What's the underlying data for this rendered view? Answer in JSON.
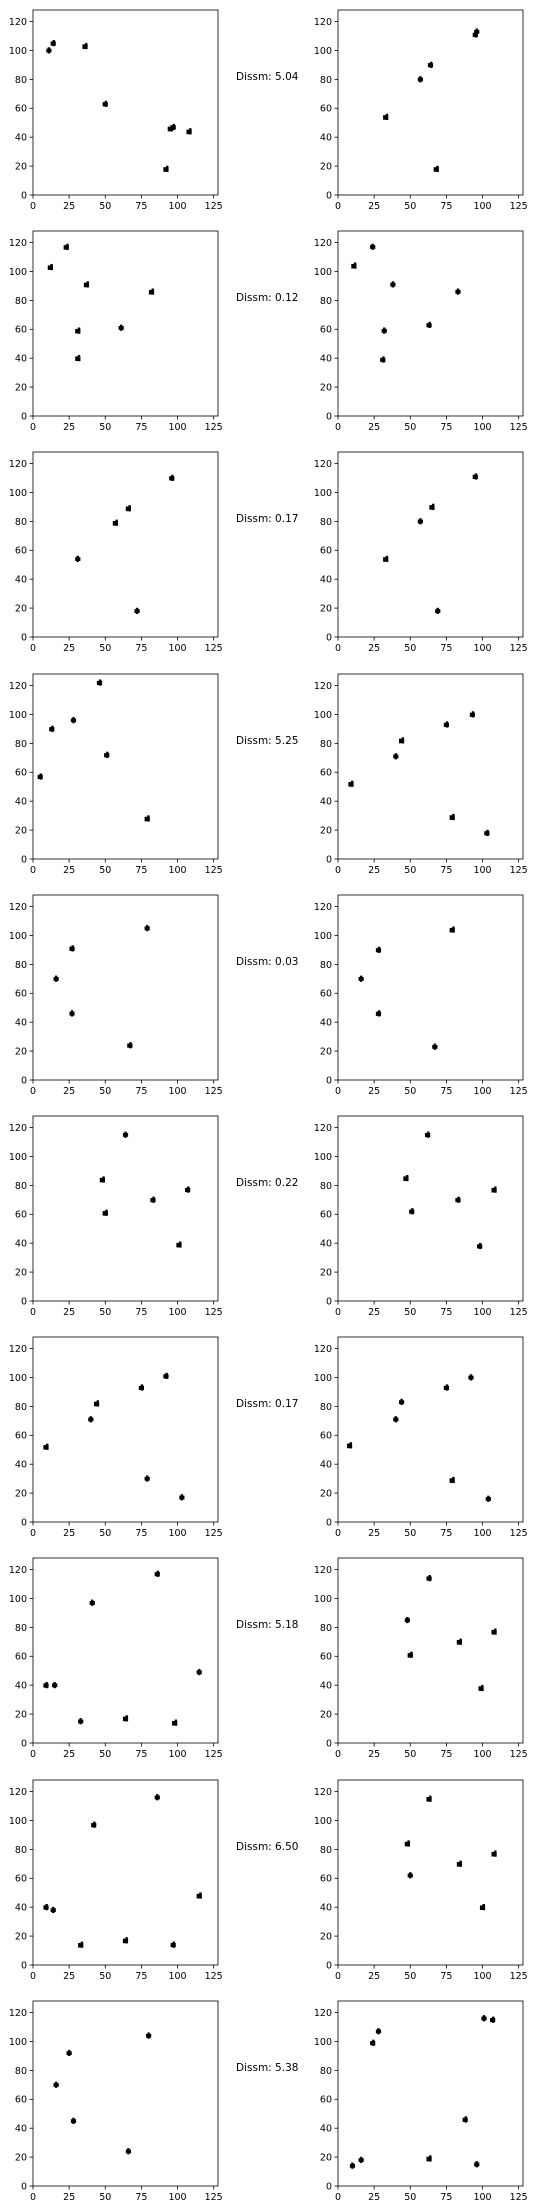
{
  "colors": {
    "points": "#000000",
    "axes": "#000000",
    "background": "#ffffff"
  },
  "chart_data": {
    "type": "scatter",
    "xlim": [
      0,
      128
    ],
    "ylim": [
      128,
      0
    ],
    "x_ticks": [
      "0",
      "25",
      "50",
      "75",
      "100",
      "125"
    ],
    "y_ticks": [
      "0",
      "20",
      "40",
      "60",
      "80",
      "100",
      "120"
    ],
    "x_tick_values": [
      0,
      25,
      50,
      75,
      100,
      125
    ],
    "y_tick_values": [
      0,
      20,
      40,
      60,
      80,
      100,
      120
    ],
    "grid": false,
    "rows": [
      {
        "dissm": "Dissm: 5.04",
        "left": [
          [
            92,
            18
          ],
          [
            95,
            46
          ],
          [
            97,
            47
          ],
          [
            108,
            44
          ],
          [
            50,
            63
          ],
          [
            36,
            103
          ],
          [
            11,
            100
          ],
          [
            14,
            105
          ]
        ],
        "right": [
          [
            68,
            18
          ],
          [
            33,
            54
          ],
          [
            57,
            80
          ],
          [
            64,
            90
          ],
          [
            95,
            111
          ],
          [
            96,
            113
          ]
        ]
      },
      {
        "dissm": "Dissm: 0.12",
        "left": [
          [
            31,
            40
          ],
          [
            31,
            59
          ],
          [
            61,
            61
          ],
          [
            37,
            91
          ],
          [
            82,
            86
          ],
          [
            12,
            103
          ],
          [
            23,
            117
          ]
        ],
        "right": [
          [
            31,
            39
          ],
          [
            32,
            59
          ],
          [
            63,
            63
          ],
          [
            38,
            91
          ],
          [
            83,
            86
          ],
          [
            11,
            104
          ],
          [
            24,
            117
          ]
        ]
      },
      {
        "dissm": "Dissm: 0.17",
        "left": [
          [
            72,
            18
          ],
          [
            31,
            54
          ],
          [
            57,
            79
          ],
          [
            66,
            89
          ],
          [
            96,
            110
          ]
        ],
        "right": [
          [
            69,
            18
          ],
          [
            33,
            54
          ],
          [
            57,
            80
          ],
          [
            65,
            90
          ],
          [
            95,
            111
          ]
        ]
      },
      {
        "dissm": "Dissm: 5.25",
        "left": [
          [
            79,
            28
          ],
          [
            5,
            57
          ],
          [
            51,
            72
          ],
          [
            13,
            90
          ],
          [
            28,
            96
          ],
          [
            46,
            122
          ]
        ],
        "right": [
          [
            103,
            18
          ],
          [
            79,
            29
          ],
          [
            9,
            52
          ],
          [
            40,
            71
          ],
          [
            44,
            82
          ],
          [
            75,
            93
          ],
          [
            93,
            100
          ]
        ]
      },
      {
        "dissm": "Dissm: 0.03",
        "left": [
          [
            67,
            24
          ],
          [
            27,
            46
          ],
          [
            16,
            70
          ],
          [
            27,
            91
          ],
          [
            79,
            105
          ]
        ],
        "right": [
          [
            67,
            23
          ],
          [
            28,
            46
          ],
          [
            16,
            70
          ],
          [
            28,
            90
          ],
          [
            79,
            104
          ]
        ]
      },
      {
        "dissm": "Dissm: 0.22",
        "left": [
          [
            101,
            39
          ],
          [
            50,
            61
          ],
          [
            83,
            70
          ],
          [
            107,
            77
          ],
          [
            48,
            84
          ],
          [
            64,
            115
          ]
        ],
        "right": [
          [
            98,
            38
          ],
          [
            51,
            62
          ],
          [
            83,
            70
          ],
          [
            108,
            77
          ],
          [
            47,
            85
          ],
          [
            62,
            115
          ]
        ]
      },
      {
        "dissm": "Dissm: 0.17",
        "left": [
          [
            103,
            17
          ],
          [
            79,
            30
          ],
          [
            9,
            52
          ],
          [
            40,
            71
          ],
          [
            44,
            82
          ],
          [
            75,
            93
          ],
          [
            92,
            101
          ]
        ],
        "right": [
          [
            104,
            16
          ],
          [
            79,
            29
          ],
          [
            8,
            53
          ],
          [
            40,
            71
          ],
          [
            44,
            83
          ],
          [
            75,
            93
          ],
          [
            92,
            100
          ]
        ]
      },
      {
        "dissm": "Dissm: 5.18",
        "left": [
          [
            33,
            15
          ],
          [
            64,
            17
          ],
          [
            98,
            14
          ],
          [
            9,
            40
          ],
          [
            15,
            40
          ],
          [
            115,
            49
          ],
          [
            41,
            97
          ],
          [
            86,
            117
          ]
        ],
        "right": [
          [
            99,
            38
          ],
          [
            50,
            61
          ],
          [
            84,
            70
          ],
          [
            108,
            77
          ],
          [
            48,
            85
          ],
          [
            63,
            114
          ]
        ]
      },
      {
        "dissm": "Dissm: 6.50",
        "left": [
          [
            33,
            14
          ],
          [
            64,
            17
          ],
          [
            97,
            14
          ],
          [
            9,
            40
          ],
          [
            14,
            38
          ],
          [
            115,
            48
          ],
          [
            42,
            97
          ],
          [
            86,
            116
          ]
        ],
        "right": [
          [
            100,
            40
          ],
          [
            50,
            62
          ],
          [
            84,
            70
          ],
          [
            108,
            77
          ],
          [
            48,
            84
          ],
          [
            63,
            115
          ]
        ]
      },
      {
        "dissm": "Dissm: 5.38",
        "left": [
          [
            66,
            24
          ],
          [
            28,
            45
          ],
          [
            16,
            70
          ],
          [
            25,
            92
          ],
          [
            80,
            104
          ]
        ],
        "right": [
          [
            10,
            14
          ],
          [
            16,
            18
          ],
          [
            63,
            19
          ],
          [
            96,
            15
          ],
          [
            88,
            46
          ],
          [
            24,
            99
          ],
          [
            28,
            107
          ],
          [
            101,
            116
          ],
          [
            107,
            115
          ]
        ]
      }
    ]
  }
}
